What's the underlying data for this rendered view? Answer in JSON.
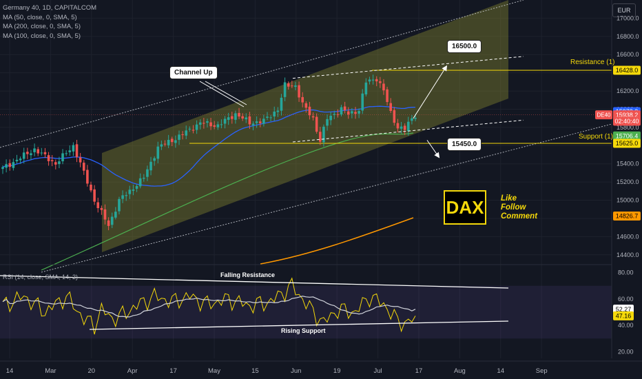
{
  "legend": {
    "title": "Germany 40, 1D, CAPITALCOM",
    "ma50": "MA (50, close, 0, SMA, 5)",
    "ma200": "MA (200, close, 0, SMA, 5)",
    "ma100": "MA (100, close, 0, SMA, 5)",
    "rsi": "RSI (14, close, SMA, 14, 2)"
  },
  "currency": "EUR",
  "logo": {
    "text": "DAX",
    "cta_lines": [
      "Like",
      "Follow",
      "Comment"
    ]
  },
  "annotations": {
    "channel": "Channel Up",
    "target_up": "16500.0",
    "target_down": "15450.0",
    "resistance": "Resistance (1)",
    "support": "Support (1)",
    "falling_resistance": "Falling Resistance",
    "rising_support": "Rising Support"
  },
  "colors": {
    "bull": "#26a69a",
    "bear": "#ef5350",
    "ma50": "#2962ff",
    "ma100": "#ff9800",
    "ma200": "#4caf50",
    "levels": "#f5d90a"
  },
  "price_axis": {
    "ticks": [
      "17000.0",
      "16800.0",
      "16600.0",
      "16400.0",
      "16200.0",
      "16000.0",
      "15800.0",
      "15600.0",
      "15400.0",
      "15200.0",
      "15000.0",
      "14800.0",
      "14600.0",
      "14400.0"
    ],
    "tags": [
      {
        "text": "16428.0",
        "value": 16428,
        "bg": "#f5d90a",
        "fg": "#000000"
      },
      {
        "text": "15973.3",
        "value": 15973.3,
        "bg": "#2962ff",
        "fg": "#ffffff"
      },
      {
        "text": "15938.2",
        "value": 15938.2,
        "bg": "#ef5350",
        "fg": "#ffffff"
      },
      {
        "text": "02:40:40",
        "value": 15868,
        "bg": "#ef5350",
        "fg": "#ffffff"
      },
      {
        "text": "15706.4",
        "value": 15706.4,
        "bg": "#4caf50",
        "fg": "#ffffff"
      },
      {
        "text": "15625.0",
        "value": 15625,
        "bg": "#f5d90a",
        "fg": "#000000"
      },
      {
        "text": "14826.7",
        "value": 14826.7,
        "bg": "#ff9800",
        "fg": "#000000"
      }
    ],
    "symbol_tag": "DE40"
  },
  "rsi_axis": {
    "ticks": [
      "80.00",
      "60.00",
      "40.00",
      "20.00"
    ],
    "tags": [
      {
        "text": "52.27",
        "value": 52.27,
        "bg": "#ffffff",
        "fg": "#000000"
      },
      {
        "text": "47.16",
        "value": 47.16,
        "bg": "#f5d90a",
        "fg": "#000000"
      }
    ]
  },
  "time_axis": {
    "labels": [
      "14",
      "Mar",
      "20",
      "Apr",
      "17",
      "May",
      "15",
      "Jun",
      "19",
      "Jul",
      "17",
      "Aug",
      "14",
      "Sep"
    ]
  },
  "chart_data": {
    "type": "candlestick",
    "title": "Germany 40, 1D, CAPITALCOM",
    "ylim": [
      14300,
      17200
    ],
    "resistance": 16428,
    "support": 15625,
    "targets": [
      16500,
      15450
    ],
    "anchors": [
      {
        "i": 0,
        "v": 15350
      },
      {
        "i": 9,
        "v": 15560
      },
      {
        "i": 15,
        "v": 15400
      },
      {
        "i": 20,
        "v": 15600
      },
      {
        "i": 22,
        "v": 15400
      },
      {
        "i": 26,
        "v": 15000
      },
      {
        "i": 30,
        "v": 14720
      },
      {
        "i": 33,
        "v": 15000
      },
      {
        "i": 36,
        "v": 15100
      },
      {
        "i": 40,
        "v": 15250
      },
      {
        "i": 44,
        "v": 15580
      },
      {
        "i": 50,
        "v": 15700
      },
      {
        "i": 56,
        "v": 15850
      },
      {
        "i": 61,
        "v": 15820
      },
      {
        "i": 66,
        "v": 15950
      },
      {
        "i": 70,
        "v": 15850
      },
      {
        "i": 74,
        "v": 15870
      },
      {
        "i": 78,
        "v": 16000
      },
      {
        "i": 80,
        "v": 16260
      },
      {
        "i": 83,
        "v": 16260
      },
      {
        "i": 85,
        "v": 16050
      },
      {
        "i": 88,
        "v": 15900
      },
      {
        "i": 90,
        "v": 15650
      },
      {
        "i": 92,
        "v": 15900
      },
      {
        "i": 96,
        "v": 16000
      },
      {
        "i": 98,
        "v": 15950
      },
      {
        "i": 101,
        "v": 15990
      },
      {
        "i": 103,
        "v": 16300
      },
      {
        "i": 106,
        "v": 16340
      },
      {
        "i": 108,
        "v": 16200
      },
      {
        "i": 110,
        "v": 15960
      },
      {
        "i": 112,
        "v": 15800
      },
      {
        "i": 114,
        "v": 15780
      },
      {
        "i": 116,
        "v": 15900
      },
      {
        "i": 117,
        "v": 15938
      }
    ],
    "rsi_ylim": [
      15,
      85
    ],
    "rsi_anchors": [
      {
        "i": 0,
        "v": 55
      },
      {
        "i": 6,
        "v": 62
      },
      {
        "i": 12,
        "v": 50
      },
      {
        "i": 18,
        "v": 62
      },
      {
        "i": 23,
        "v": 45
      },
      {
        "i": 26,
        "v": 40
      },
      {
        "i": 28,
        "v": 52
      },
      {
        "i": 31,
        "v": 45
      },
      {
        "i": 34,
        "v": 48
      },
      {
        "i": 38,
        "v": 55
      },
      {
        "i": 43,
        "v": 62
      },
      {
        "i": 48,
        "v": 58
      },
      {
        "i": 53,
        "v": 62
      },
      {
        "i": 58,
        "v": 56
      },
      {
        "i": 64,
        "v": 60
      },
      {
        "i": 70,
        "v": 55
      },
      {
        "i": 76,
        "v": 58
      },
      {
        "i": 82,
        "v": 70
      },
      {
        "i": 88,
        "v": 50
      },
      {
        "i": 91,
        "v": 42
      },
      {
        "i": 95,
        "v": 52
      },
      {
        "i": 100,
        "v": 50
      },
      {
        "i": 104,
        "v": 62
      },
      {
        "i": 108,
        "v": 56
      },
      {
        "i": 112,
        "v": 43
      },
      {
        "i": 115,
        "v": 42
      },
      {
        "i": 117,
        "v": 47
      }
    ],
    "rsi_last": 47.16,
    "rsi_ma_last": 52.27
  }
}
